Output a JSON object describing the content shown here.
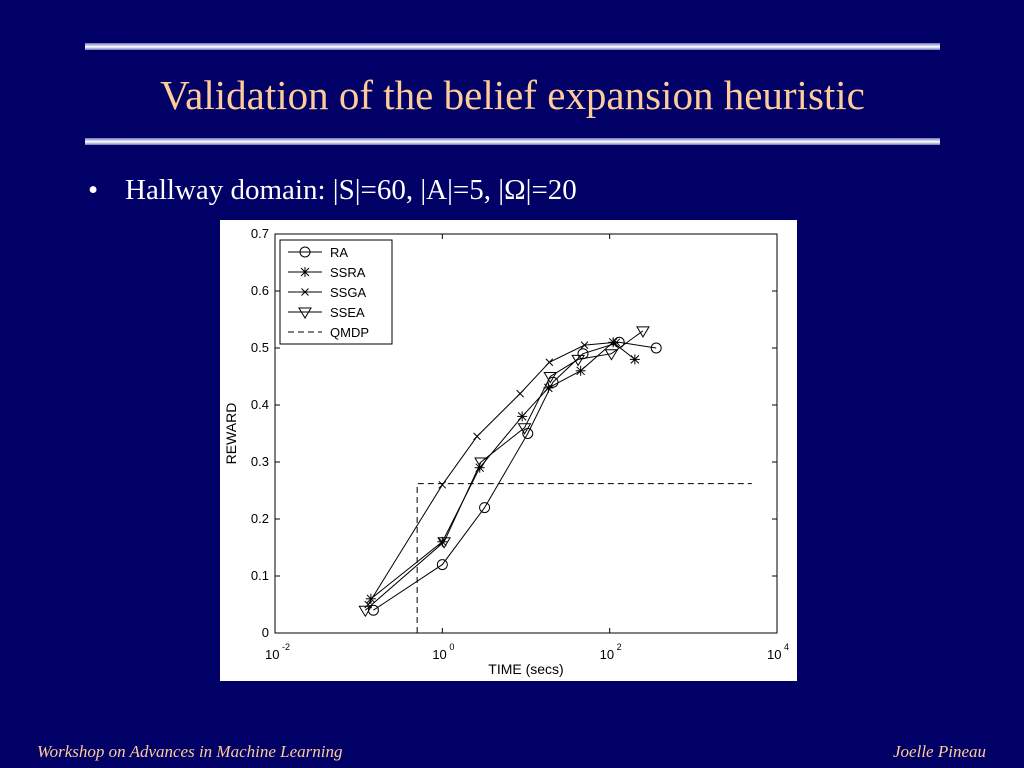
{
  "slide": {
    "title": "Validation of the belief expansion heuristic",
    "bullet": "Hallway domain: |S|=60, |A|=5, |Ω|=20",
    "footer_left": "Workshop on Advances in Machine Learning",
    "footer_right": "Joelle Pineau"
  },
  "chart_data": {
    "type": "line",
    "xlabel": "TIME (secs)",
    "ylabel": "REWARD",
    "x_scale": "log",
    "xlim": [
      0.01,
      10000
    ],
    "ylim": [
      0,
      0.7
    ],
    "x_ticks": [
      {
        "base": "10",
        "exp": "-2"
      },
      {
        "base": "10",
        "exp": "0"
      },
      {
        "base": "10",
        "exp": "2"
      },
      {
        "base": "10",
        "exp": "4"
      }
    ],
    "y_ticks": [
      "0",
      "0.1",
      "0.2",
      "0.3",
      "0.4",
      "0.5",
      "0.6",
      "0.7"
    ],
    "y_tick_values": [
      0,
      0.1,
      0.2,
      0.3,
      0.4,
      0.5,
      0.6,
      0.7
    ],
    "grid": false,
    "legend_position": "top-left",
    "series": [
      {
        "name": "RA",
        "marker": "circle",
        "x": [
          0.15,
          1.0,
          3.2,
          10.5,
          21,
          48,
          130,
          360
        ],
        "y": [
          0.04,
          0.12,
          0.22,
          0.35,
          0.44,
          0.49,
          0.51,
          0.5
        ]
      },
      {
        "name": "SSRA",
        "marker": "asterisk",
        "x": [
          0.14,
          1.0,
          2.8,
          9.0,
          18.5,
          45,
          110,
          200
        ],
        "y": [
          0.06,
          0.16,
          0.29,
          0.38,
          0.43,
          0.46,
          0.51,
          0.48
        ]
      },
      {
        "name": "SSGA",
        "marker": "x",
        "x": [
          0.13,
          1.0,
          2.6,
          8.5,
          19,
          50,
          120
        ],
        "y": [
          0.05,
          0.26,
          0.345,
          0.42,
          0.475,
          0.505,
          0.51
        ]
      },
      {
        "name": "SSEA",
        "marker": "triangle-down",
        "x": [
          0.12,
          1.05,
          2.9,
          9.6,
          19.5,
          42,
          105,
          250
        ],
        "y": [
          0.04,
          0.16,
          0.3,
          0.36,
          0.45,
          0.48,
          0.49,
          0.53
        ]
      },
      {
        "name": "QMDP",
        "marker": "none",
        "dashed": true,
        "x": [
          0.5,
          0.5,
          5000
        ],
        "y": [
          0,
          0.262,
          0.262
        ]
      }
    ],
    "colors": {
      "background": "#000066",
      "title": "#ffcc99",
      "text": "#ffffff",
      "plot": "#000000"
    }
  }
}
